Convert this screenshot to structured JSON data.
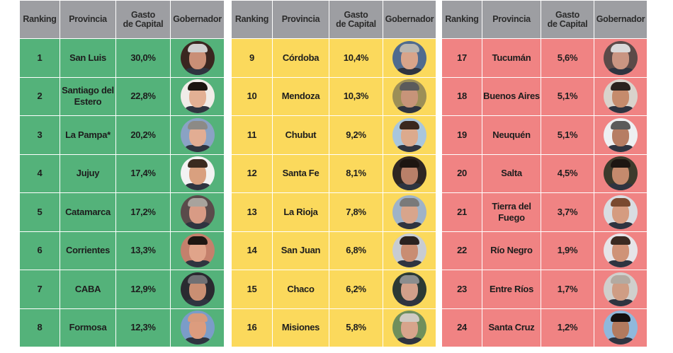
{
  "headers": {
    "ranking": "Ranking",
    "provincia": "Provincia",
    "gasto_line1": "Gasto",
    "gasto_line2": "de Capital",
    "gobernador": "Gobernador"
  },
  "colors": {
    "header_bg": "#9d9ea2",
    "group_top": "#54b27a",
    "group_mid": "#fbd95c",
    "group_low": "#f08383"
  },
  "panels": [
    {
      "group": "top",
      "rows": [
        {
          "rank": "1",
          "provincia": "San Luis",
          "gasto": "30,0%",
          "avatar": {
            "bg": "#3a2620",
            "hair": "#cfcfcf",
            "skin": "#c98f76"
          }
        },
        {
          "rank": "2",
          "provincia": "Santiago del Estero",
          "gasto": "22,8%",
          "avatar": {
            "bg": "#f0ece8",
            "hair": "#1b1410",
            "skin": "#e3b094"
          }
        },
        {
          "rank": "3",
          "provincia": "La Pampa*",
          "gasto": "20,2%",
          "avatar": {
            "bg": "#8aa2c4",
            "hair": "#8c8a86",
            "skin": "#e2ad93"
          }
        },
        {
          "rank": "4",
          "provincia": "Jujuy",
          "gasto": "17,4%",
          "avatar": {
            "bg": "#f2f2f2",
            "hair": "#3b2a1f",
            "skin": "#d9a07f"
          }
        },
        {
          "rank": "5",
          "provincia": "Catamarca",
          "gasto": "17,2%",
          "avatar": {
            "bg": "#5a4b4b",
            "hair": "#a8a39d",
            "skin": "#d89b85"
          }
        },
        {
          "rank": "6",
          "provincia": "Corrientes",
          "gasto": "13,3%",
          "avatar": {
            "bg": "#c4806c",
            "hair": "#1e1612",
            "skin": "#e0a48a"
          }
        },
        {
          "rank": "7",
          "provincia": "CABA",
          "gasto": "12,9%",
          "avatar": {
            "bg": "#2a2a30",
            "hair": "#6f7074",
            "skin": "#c98f73"
          }
        },
        {
          "rank": "8",
          "provincia": "Formosa",
          "gasto": "12,3%",
          "avatar": {
            "bg": "#7b9cc8",
            "hair": "#d79a7c",
            "skin": "#dc9c7e"
          }
        }
      ]
    },
    {
      "group": "mid",
      "rows": [
        {
          "rank": "9",
          "provincia": "Córdoba",
          "gasto": "10,4%",
          "avatar": {
            "bg": "#4f6b8f",
            "hair": "#b9b6b0",
            "skin": "#d8a48a"
          }
        },
        {
          "rank": "10",
          "provincia": "Mendoza",
          "gasto": "10,3%",
          "avatar": {
            "bg": "#9c8f57",
            "hair": "#5b5b5b",
            "skin": "#c79479"
          }
        },
        {
          "rank": "11",
          "provincia": "Chubut",
          "gasto": "9,2%",
          "avatar": {
            "bg": "#a9c6dc",
            "hair": "#3a281e",
            "skin": "#dcaa8d"
          }
        },
        {
          "rank": "12",
          "provincia": "Santa Fe",
          "gasto": "8,1%",
          "avatar": {
            "bg": "#2f2622",
            "hair": "#1d1511",
            "skin": "#b98069"
          }
        },
        {
          "rank": "13",
          "provincia": "La Rioja",
          "gasto": "7,8%",
          "avatar": {
            "bg": "#9fb3c8",
            "hair": "#7a7a7a",
            "skin": "#d8a58c"
          }
        },
        {
          "rank": "14",
          "provincia": "San Juan",
          "gasto": "6,8%",
          "avatar": {
            "bg": "#c8ccd2",
            "hair": "#2a2220",
            "skin": "#c98d72"
          }
        },
        {
          "rank": "15",
          "provincia": "Chaco",
          "gasto": "6,2%",
          "avatar": {
            "bg": "#2c3a34",
            "hair": "#8b8d8e",
            "skin": "#d2a08a"
          }
        },
        {
          "rank": "16",
          "provincia": "Misiones",
          "gasto": "5,8%",
          "avatar": {
            "bg": "#6f8f5c",
            "hair": "#cfcac3",
            "skin": "#d7a48c"
          }
        }
      ]
    },
    {
      "group": "low",
      "rows": [
        {
          "rank": "17",
          "provincia": "Tucumán",
          "gasto": "5,6%",
          "avatar": {
            "bg": "#5b4a48",
            "hair": "#d9d9d9",
            "skin": "#c99582"
          }
        },
        {
          "rank": "18",
          "provincia": "Buenos Aires",
          "gasto": "5,1%",
          "avatar": {
            "bg": "#d9d3cc",
            "hair": "#2a221e",
            "skin": "#c58b6c"
          }
        },
        {
          "rank": "19",
          "provincia": "Neuquén",
          "gasto": "5,1%",
          "avatar": {
            "bg": "#eef0f2",
            "hair": "#5b5b5b",
            "skin": "#b67d63"
          }
        },
        {
          "rank": "20",
          "provincia": "Salta",
          "gasto": "4,5%",
          "avatar": {
            "bg": "#3d3a2c",
            "hair": "#1d1612",
            "skin": "#c48a6d"
          }
        },
        {
          "rank": "21",
          "provincia": "Tierra del Fuego",
          "gasto": "3,7%",
          "avatar": {
            "bg": "#d9dde2",
            "hair": "#7a4a30",
            "skin": "#d59c80"
          }
        },
        {
          "rank": "22",
          "provincia": "Río Negro",
          "gasto": "1,9%",
          "avatar": {
            "bg": "#e6e4e8",
            "hair": "#3a2a22",
            "skin": "#cf9378"
          }
        },
        {
          "rank": "23",
          "provincia": "Entre Ríos",
          "gasto": "1,7%",
          "avatar": {
            "bg": "#d0cfcc",
            "hair": "#b3aaa1",
            "skin": "#cf9d84"
          }
        },
        {
          "rank": "24",
          "provincia": "Santa Cruz",
          "gasto": "1,2%",
          "avatar": {
            "bg": "#8fb8dc",
            "hair": "#141010",
            "skin": "#b27a5e"
          }
        }
      ]
    }
  ]
}
